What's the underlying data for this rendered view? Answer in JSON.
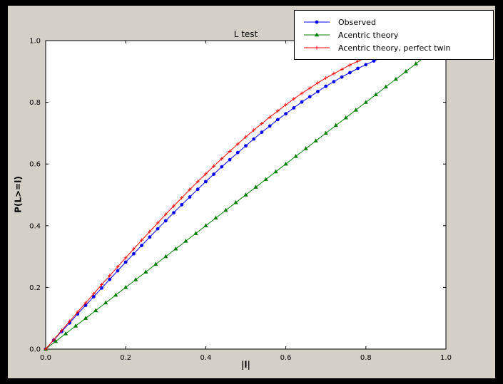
{
  "chart_data": {
    "type": "line",
    "title": "L test",
    "xlabel": "|l|",
    "ylabel": "P(L>=l)",
    "xlim": [
      0,
      1
    ],
    "ylim": [
      0,
      1
    ],
    "xticks": [
      0,
      0.2,
      0.4,
      0.6,
      0.8,
      1.0
    ],
    "yticks": [
      0,
      0.2,
      0.4,
      0.6,
      0.8,
      1.0
    ],
    "grid": false,
    "legend_position": "upper right",
    "colors": {
      "figure_bg": "#d4d0c8",
      "axes_bg": "#ffffff",
      "frame": "#000000"
    },
    "series": [
      {
        "name": "Observed",
        "color": "#0000ff",
        "marker": "circle",
        "x": [
          0,
          0.02,
          0.04,
          0.06,
          0.08,
          0.1,
          0.12,
          0.14,
          0.16,
          0.18,
          0.2,
          0.22,
          0.24,
          0.26,
          0.28,
          0.3,
          0.32,
          0.34,
          0.36,
          0.38,
          0.4,
          0.42,
          0.44,
          0.46,
          0.48,
          0.5,
          0.52,
          0.54,
          0.56,
          0.58,
          0.6,
          0.62,
          0.64,
          0.66,
          0.68,
          0.7,
          0.72,
          0.74,
          0.76,
          0.78,
          0.8,
          0.82,
          0.84,
          0.86
        ],
        "y": [
          0,
          0.029,
          0.057,
          0.085,
          0.114,
          0.142,
          0.17,
          0.198,
          0.226,
          0.254,
          0.282,
          0.309,
          0.336,
          0.363,
          0.39,
          0.416,
          0.442,
          0.468,
          0.493,
          0.518,
          0.543,
          0.567,
          0.591,
          0.614,
          0.637,
          0.659,
          0.681,
          0.703,
          0.723,
          0.744,
          0.763,
          0.782,
          0.801,
          0.818,
          0.835,
          0.852,
          0.867,
          0.882,
          0.896,
          0.91,
          0.922,
          0.934,
          0.945,
          0.955
        ]
      },
      {
        "name": "Acentric theory",
        "color": "#008000",
        "marker": "triangle",
        "x": [
          0,
          0.025,
          0.05,
          0.075,
          0.1,
          0.125,
          0.15,
          0.175,
          0.2,
          0.225,
          0.25,
          0.275,
          0.3,
          0.325,
          0.35,
          0.375,
          0.4,
          0.425,
          0.45,
          0.475,
          0.5,
          0.525,
          0.55,
          0.575,
          0.6,
          0.625,
          0.65,
          0.675,
          0.7,
          0.725,
          0.75,
          0.775,
          0.8,
          0.825,
          0.85,
          0.875,
          0.9,
          0.925,
          0.95,
          0.975
        ],
        "y": [
          0,
          0.025,
          0.05,
          0.075,
          0.1,
          0.125,
          0.15,
          0.175,
          0.2,
          0.225,
          0.25,
          0.275,
          0.3,
          0.325,
          0.35,
          0.375,
          0.4,
          0.425,
          0.45,
          0.475,
          0.5,
          0.525,
          0.55,
          0.575,
          0.6,
          0.625,
          0.65,
          0.675,
          0.7,
          0.725,
          0.75,
          0.775,
          0.8,
          0.825,
          0.85,
          0.875,
          0.9,
          0.925,
          0.95,
          0.975
        ]
      },
      {
        "name": "Acentric theory, perfect twin",
        "color": "#ff0000",
        "marker": "plus",
        "x": [
          0,
          0.02,
          0.04,
          0.06,
          0.08,
          0.1,
          0.12,
          0.14,
          0.16,
          0.18,
          0.2,
          0.22,
          0.24,
          0.26,
          0.28,
          0.3,
          0.32,
          0.34,
          0.36,
          0.38,
          0.4,
          0.42,
          0.44,
          0.46,
          0.48,
          0.5,
          0.52,
          0.54,
          0.56,
          0.58,
          0.6,
          0.62,
          0.64,
          0.66,
          0.68,
          0.7,
          0.72,
          0.74,
          0.76,
          0.78,
          0.8,
          0.82,
          0.84,
          0.86,
          0.88
        ],
        "y": [
          0,
          0.03,
          0.06,
          0.09,
          0.12,
          0.15,
          0.179,
          0.209,
          0.238,
          0.267,
          0.296,
          0.325,
          0.353,
          0.381,
          0.409,
          0.437,
          0.464,
          0.49,
          0.517,
          0.543,
          0.568,
          0.593,
          0.617,
          0.641,
          0.665,
          0.688,
          0.71,
          0.731,
          0.752,
          0.772,
          0.792,
          0.811,
          0.829,
          0.846,
          0.863,
          0.879,
          0.893,
          0.907,
          0.921,
          0.933,
          0.944,
          0.954,
          0.964,
          0.972,
          0.979
        ]
      }
    ]
  }
}
